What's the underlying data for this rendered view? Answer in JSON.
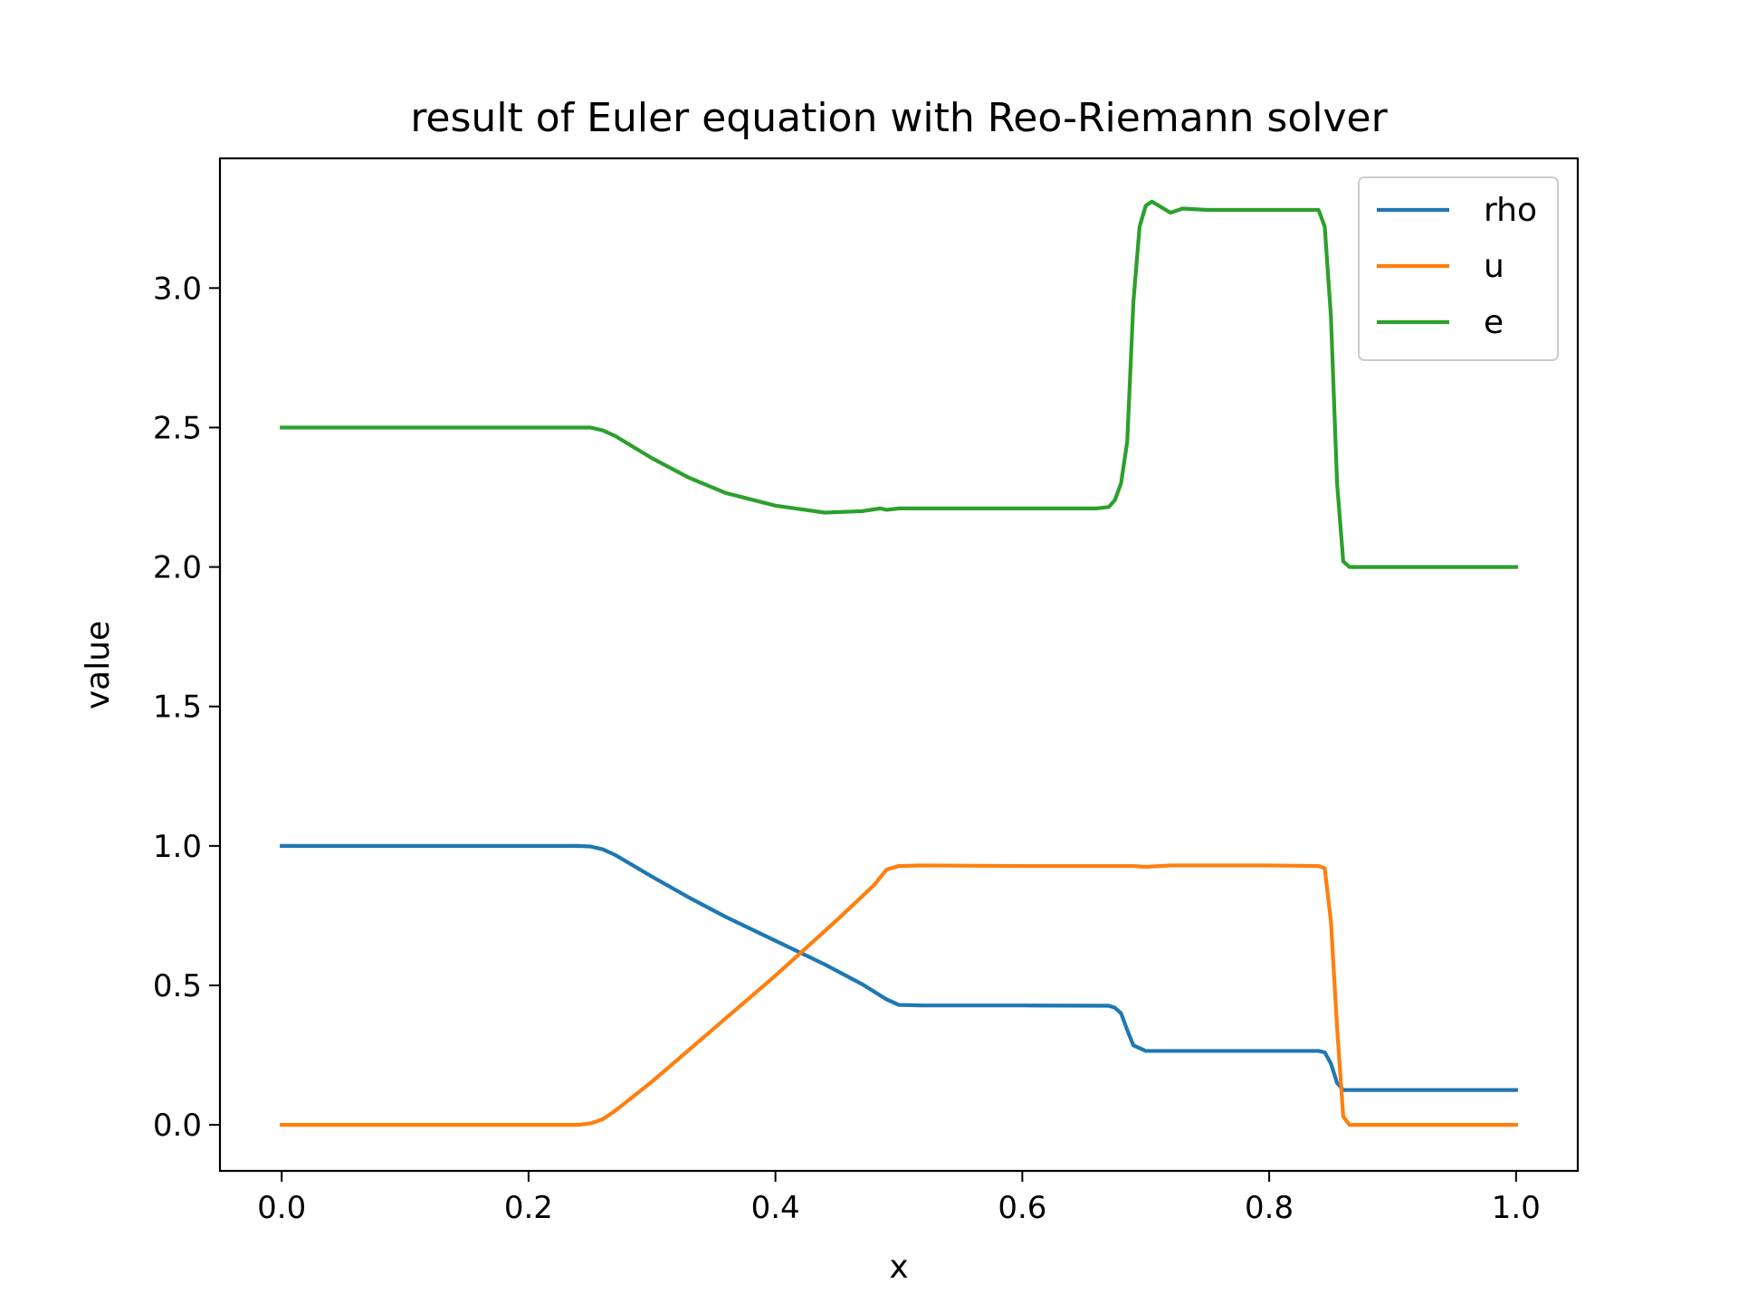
{
  "chart_data": {
    "type": "line",
    "title": "result of Euler equation with Reo-Riemann solver",
    "xlabel": "x",
    "ylabel": "value",
    "xlim": [
      -0.05,
      1.05
    ],
    "ylim": [
      -0.165,
      3.465
    ],
    "xticks": [
      "0.0",
      "0.2",
      "0.4",
      "0.6",
      "0.8",
      "1.0"
    ],
    "yticks": [
      "0.0",
      "0.5",
      "1.0",
      "1.5",
      "2.0",
      "2.5",
      "3.0"
    ],
    "grid": false,
    "legend_position": "top-right",
    "series": [
      {
        "name": "rho",
        "color": "#1f77b4",
        "points": [
          [
            0.0,
            1.0
          ],
          [
            0.24,
            1.0
          ],
          [
            0.25,
            0.998
          ],
          [
            0.26,
            0.988
          ],
          [
            0.27,
            0.968
          ],
          [
            0.3,
            0.89
          ],
          [
            0.33,
            0.815
          ],
          [
            0.36,
            0.745
          ],
          [
            0.4,
            0.66
          ],
          [
            0.44,
            0.575
          ],
          [
            0.47,
            0.505
          ],
          [
            0.49,
            0.45
          ],
          [
            0.5,
            0.43
          ],
          [
            0.52,
            0.428
          ],
          [
            0.6,
            0.428
          ],
          [
            0.67,
            0.427
          ],
          [
            0.675,
            0.42
          ],
          [
            0.68,
            0.4
          ],
          [
            0.685,
            0.34
          ],
          [
            0.69,
            0.285
          ],
          [
            0.7,
            0.265
          ],
          [
            0.72,
            0.265
          ],
          [
            0.8,
            0.265
          ],
          [
            0.84,
            0.265
          ],
          [
            0.845,
            0.26
          ],
          [
            0.85,
            0.22
          ],
          [
            0.855,
            0.15
          ],
          [
            0.86,
            0.125
          ],
          [
            1.0,
            0.125
          ]
        ]
      },
      {
        "name": "u",
        "color": "#ff7f0e",
        "points": [
          [
            0.0,
            0.0
          ],
          [
            0.24,
            0.0
          ],
          [
            0.25,
            0.005
          ],
          [
            0.26,
            0.02
          ],
          [
            0.27,
            0.05
          ],
          [
            0.3,
            0.155
          ],
          [
            0.35,
            0.345
          ],
          [
            0.4,
            0.535
          ],
          [
            0.45,
            0.735
          ],
          [
            0.48,
            0.86
          ],
          [
            0.49,
            0.915
          ],
          [
            0.5,
            0.928
          ],
          [
            0.52,
            0.93
          ],
          [
            0.6,
            0.928
          ],
          [
            0.69,
            0.928
          ],
          [
            0.7,
            0.925
          ],
          [
            0.72,
            0.93
          ],
          [
            0.8,
            0.93
          ],
          [
            0.84,
            0.928
          ],
          [
            0.845,
            0.92
          ],
          [
            0.85,
            0.73
          ],
          [
            0.855,
            0.35
          ],
          [
            0.86,
            0.03
          ],
          [
            0.865,
            0.0
          ],
          [
            1.0,
            0.0
          ]
        ]
      },
      {
        "name": "e",
        "color": "#2ca02c",
        "points": [
          [
            0.0,
            2.5
          ],
          [
            0.25,
            2.5
          ],
          [
            0.26,
            2.49
          ],
          [
            0.27,
            2.47
          ],
          [
            0.3,
            2.39
          ],
          [
            0.33,
            2.32
          ],
          [
            0.36,
            2.265
          ],
          [
            0.4,
            2.22
          ],
          [
            0.44,
            2.195
          ],
          [
            0.47,
            2.2
          ],
          [
            0.485,
            2.21
          ],
          [
            0.49,
            2.205
          ],
          [
            0.5,
            2.21
          ],
          [
            0.6,
            2.21
          ],
          [
            0.66,
            2.21
          ],
          [
            0.67,
            2.215
          ],
          [
            0.675,
            2.24
          ],
          [
            0.68,
            2.3
          ],
          [
            0.685,
            2.45
          ],
          [
            0.69,
            2.95
          ],
          [
            0.695,
            3.22
          ],
          [
            0.7,
            3.295
          ],
          [
            0.705,
            3.31
          ],
          [
            0.72,
            3.27
          ],
          [
            0.73,
            3.285
          ],
          [
            0.75,
            3.28
          ],
          [
            0.8,
            3.28
          ],
          [
            0.84,
            3.28
          ],
          [
            0.845,
            3.22
          ],
          [
            0.85,
            2.9
          ],
          [
            0.855,
            2.3
          ],
          [
            0.86,
            2.02
          ],
          [
            0.865,
            2.0
          ],
          [
            1.0,
            2.0
          ]
        ]
      }
    ]
  }
}
